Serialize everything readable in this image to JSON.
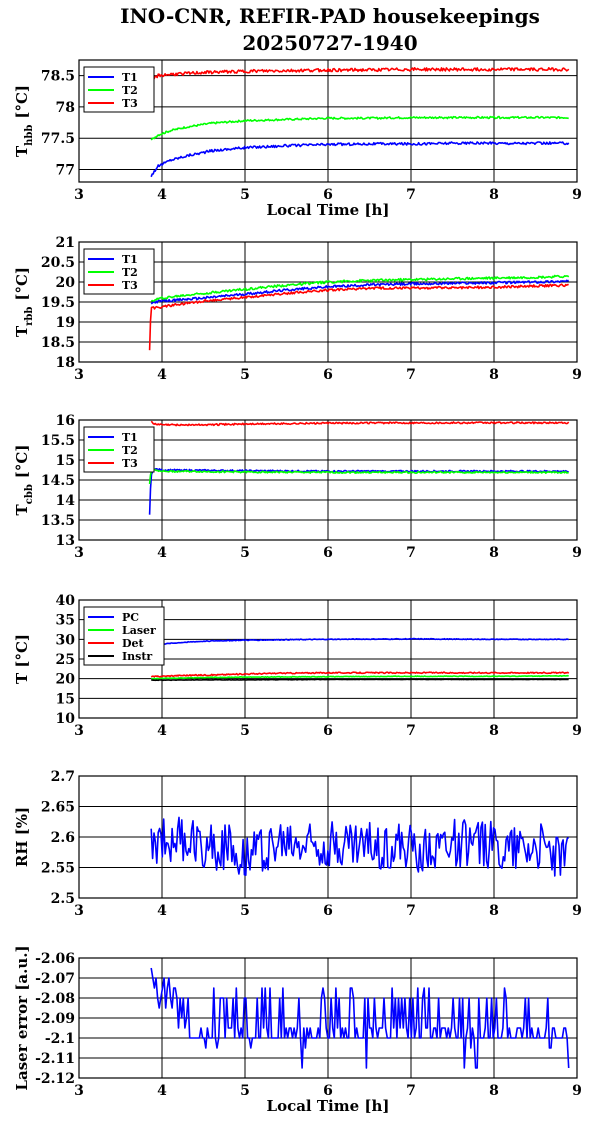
{
  "title_line1": "INO-CNR, REFIR-PAD housekeepings",
  "title_line2": "20250727-1940",
  "colors": {
    "blue": "#0000ff",
    "green": "#00ff00",
    "red": "#ff0000",
    "black": "#000000"
  },
  "chart_data": [
    {
      "type": "line",
      "ylabel": "T",
      "ylabel_sub": "hbb",
      "ylabel_unit": "[°C]",
      "xlabel": "Local Time [h]",
      "xlim": [
        3,
        9
      ],
      "ylim": [
        76.8,
        78.75
      ],
      "xticks": [
        "3",
        "4",
        "5",
        "6",
        "7",
        "8",
        "9"
      ],
      "yticks": [
        {
          "v": 77,
          "t": "77"
        },
        {
          "v": 77.5,
          "t": "77.5"
        },
        {
          "v": 78,
          "t": "78"
        },
        {
          "v": 78.5,
          "t": "78.5"
        }
      ],
      "grid": true,
      "legend": "top-left",
      "series": [
        {
          "name": "T1",
          "color": "#0000ff",
          "x": [
            3.87,
            3.95,
            4.1,
            4.3,
            4.6,
            5.0,
            5.5,
            6.0,
            6.5,
            7.0,
            7.5,
            8.0,
            8.5,
            8.9
          ],
          "values": [
            76.9,
            77.05,
            77.15,
            77.22,
            77.3,
            77.35,
            77.38,
            77.4,
            77.41,
            77.41,
            77.42,
            77.42,
            77.42,
            77.42
          ],
          "noise": 0.02
        },
        {
          "name": "T2",
          "color": "#00ff00",
          "x": [
            3.87,
            3.95,
            4.1,
            4.3,
            4.6,
            5.0,
            5.5,
            6.0,
            6.5,
            7.0,
            7.5,
            8.0,
            8.5,
            8.9
          ],
          "values": [
            77.47,
            77.55,
            77.62,
            77.68,
            77.74,
            77.78,
            77.8,
            77.82,
            77.82,
            77.83,
            77.83,
            77.83,
            77.83,
            77.83
          ],
          "noise": 0.015
        },
        {
          "name": "T3",
          "color": "#ff0000",
          "x": [
            3.87,
            3.9,
            3.95,
            4.1,
            4.5,
            5.0,
            5.5,
            6.0,
            6.5,
            7.0,
            7.5,
            8.0,
            8.5,
            8.9
          ],
          "values": [
            78.3,
            78.45,
            78.5,
            78.52,
            78.55,
            78.57,
            78.58,
            78.59,
            78.59,
            78.6,
            78.6,
            78.6,
            78.6,
            78.6
          ],
          "noise": 0.025
        }
      ]
    },
    {
      "type": "line",
      "ylabel": "T",
      "ylabel_sub": "rbb",
      "ylabel_unit": "[°C]",
      "xlabel": "",
      "xlim": [
        3,
        9
      ],
      "ylim": [
        18,
        21
      ],
      "xticks": [
        "3",
        "4",
        "5",
        "6",
        "7",
        "8",
        "9"
      ],
      "yticks": [
        {
          "v": 18,
          "t": "18"
        },
        {
          "v": 18.5,
          "t": "18.5"
        },
        {
          "v": 19,
          "t": "19"
        },
        {
          "v": 19.5,
          "t": "19.5"
        },
        {
          "v": 20,
          "t": "20"
        },
        {
          "v": 20.5,
          "t": "20.5"
        },
        {
          "v": 21,
          "t": "21"
        }
      ],
      "grid": true,
      "legend": "top-left",
      "series": [
        {
          "name": "T1",
          "color": "#0000ff",
          "x": [
            3.87,
            3.9,
            4.0,
            4.5,
            5.0,
            5.5,
            6.0,
            6.5,
            7.0,
            7.5,
            8.0,
            8.5,
            8.9
          ],
          "values": [
            19.45,
            19.5,
            19.52,
            19.6,
            19.7,
            19.8,
            19.88,
            19.93,
            19.95,
            19.97,
            19.98,
            20.0,
            20.02
          ],
          "noise": 0.03
        },
        {
          "name": "T2",
          "color": "#00ff00",
          "x": [
            3.87,
            3.9,
            4.0,
            4.5,
            5.0,
            5.5,
            6.0,
            6.5,
            7.0,
            7.5,
            8.0,
            8.5,
            8.9
          ],
          "values": [
            19.5,
            19.55,
            19.6,
            19.72,
            19.82,
            19.92,
            20.0,
            20.04,
            20.06,
            20.08,
            20.1,
            20.12,
            20.14
          ],
          "noise": 0.03
        },
        {
          "name": "T3",
          "color": "#ff0000",
          "x": [
            3.85,
            3.86,
            3.87,
            3.9,
            4.0,
            4.5,
            5.0,
            5.5,
            6.0,
            6.5,
            7.0,
            7.5,
            8.0,
            8.5,
            8.9
          ],
          "values": [
            18.3,
            18.9,
            19.4,
            19.35,
            19.38,
            19.52,
            19.62,
            19.72,
            19.8,
            19.84,
            19.85,
            19.86,
            19.87,
            19.9,
            19.92
          ],
          "noise": 0.03
        }
      ]
    },
    {
      "type": "line",
      "ylabel": "T",
      "ylabel_sub": "cbb",
      "ylabel_unit": "[°C]",
      "xlabel": "",
      "xlim": [
        3,
        9
      ],
      "ylim": [
        13,
        16
      ],
      "xticks": [
        "3",
        "4",
        "5",
        "6",
        "7",
        "8",
        "9"
      ],
      "yticks": [
        {
          "v": 13,
          "t": "13"
        },
        {
          "v": 13.5,
          "t": "13.5"
        },
        {
          "v": 14,
          "t": "14"
        },
        {
          "v": 14.5,
          "t": "14.5"
        },
        {
          "v": 15,
          "t": "15"
        },
        {
          "v": 15.5,
          "t": "15.5"
        },
        {
          "v": 16,
          "t": "16"
        }
      ],
      "grid": true,
      "legend": "top-left",
      "series": [
        {
          "name": "T1",
          "color": "#0000ff",
          "x": [
            3.85,
            3.86,
            3.87,
            3.9,
            4.0,
            5.0,
            6.0,
            7.0,
            8.0,
            8.9
          ],
          "values": [
            13.65,
            14.2,
            14.6,
            14.78,
            14.75,
            14.73,
            14.72,
            14.72,
            14.72,
            14.72
          ],
          "noise": 0.02
        },
        {
          "name": "T2",
          "color": "#00ff00",
          "x": [
            3.85,
            3.86,
            3.87,
            3.9,
            4.0,
            5.0,
            6.0,
            7.0,
            8.0,
            8.9
          ],
          "values": [
            14.4,
            14.6,
            14.7,
            14.76,
            14.72,
            14.7,
            14.69,
            14.69,
            14.69,
            14.69
          ],
          "noise": 0.02
        },
        {
          "name": "T3",
          "color": "#ff0000",
          "x": [
            3.87,
            3.9,
            4.0,
            4.5,
            5.0,
            6.0,
            7.0,
            8.0,
            8.9
          ],
          "values": [
            15.95,
            15.9,
            15.88,
            15.88,
            15.9,
            15.92,
            15.93,
            15.93,
            15.93
          ],
          "noise": 0.02
        }
      ]
    },
    {
      "type": "line",
      "ylabel": "T [°C]",
      "ylabel_sub": "",
      "ylabel_unit": "",
      "xlabel": "",
      "xlim": [
        3,
        9
      ],
      "ylim": [
        10,
        40
      ],
      "xticks": [
        "3",
        "4",
        "5",
        "6",
        "7",
        "8",
        "9"
      ],
      "yticks": [
        {
          "v": 10,
          "t": "10"
        },
        {
          "v": 15,
          "t": "15"
        },
        {
          "v": 20,
          "t": "20"
        },
        {
          "v": 25,
          "t": "25"
        },
        {
          "v": 30,
          "t": "30"
        },
        {
          "v": 35,
          "t": "35"
        },
        {
          "v": 40,
          "t": "40"
        }
      ],
      "grid": true,
      "legend": "top-left",
      "series": [
        {
          "name": "PC",
          "color": "#0000ff",
          "x": [
            3.87,
            4.0,
            4.3,
            4.6,
            5.0,
            5.5,
            6.0,
            7.0,
            8.0,
            8.9
          ],
          "values": [
            28.0,
            28.8,
            29.3,
            29.6,
            29.8,
            29.9,
            30.0,
            30.1,
            30.0,
            30.0
          ],
          "noise": 0.1
        },
        {
          "name": "Laser",
          "color": "#00ff00",
          "x": [
            3.87,
            4.5,
            5.0,
            6.0,
            7.0,
            8.0,
            8.9
          ],
          "values": [
            20.0,
            20.3,
            20.4,
            20.5,
            20.6,
            20.6,
            20.7
          ],
          "noise": 0.08
        },
        {
          "name": "Det",
          "color": "#ff0000",
          "x": [
            3.87,
            4.2,
            4.7,
            5.0,
            5.5,
            6.0,
            7.0,
            8.0,
            8.9
          ],
          "values": [
            20.5,
            20.8,
            21.0,
            21.2,
            21.4,
            21.5,
            21.5,
            21.5,
            21.5
          ],
          "noise": 0.15
        },
        {
          "name": "Instr",
          "color": "#000000",
          "x": [
            3.87,
            4.5,
            5.0,
            6.0,
            7.0,
            8.0,
            8.9
          ],
          "values": [
            19.6,
            19.7,
            19.7,
            19.8,
            19.8,
            19.8,
            19.8
          ],
          "noise": 0.05
        }
      ]
    },
    {
      "type": "line",
      "ylabel": "RH [%]",
      "ylabel_sub": "",
      "ylabel_unit": "",
      "xlabel": "",
      "xlim": [
        3,
        9
      ],
      "ylim": [
        2.5,
        2.7
      ],
      "xticks": [
        "3",
        "4",
        "5",
        "6",
        "7",
        "8",
        "9"
      ],
      "yticks": [
        {
          "v": 2.5,
          "t": "2.5"
        },
        {
          "v": 2.55,
          "t": "2.55"
        },
        {
          "v": 2.6,
          "t": "2.6"
        },
        {
          "v": 2.65,
          "t": "2.65"
        },
        {
          "v": 2.7,
          "t": "2.7"
        }
      ],
      "grid": true,
      "legend": "none",
      "series": [
        {
          "name": "",
          "color": "#0000ff",
          "x": [
            3.87,
            4.0,
            4.5,
            5.0,
            5.5,
            6.0,
            6.5,
            7.0,
            7.5,
            8.0,
            8.5,
            8.9
          ],
          "values": [
            2.575,
            2.6,
            2.59,
            2.575,
            2.59,
            2.59,
            2.585,
            2.58,
            2.59,
            2.585,
            2.59,
            2.56
          ],
          "noise": 0.04,
          "jagged": true
        }
      ]
    },
    {
      "type": "line",
      "ylabel": "Laser error [a.u.]",
      "ylabel_sub": "",
      "ylabel_unit": "",
      "xlabel": "Local Time [h]",
      "xlim": [
        3,
        9
      ],
      "ylim": [
        -2.12,
        -2.06
      ],
      "xticks": [
        "3",
        "4",
        "5",
        "6",
        "7",
        "8",
        "9"
      ],
      "yticks": [
        {
          "v": -2.12,
          "t": "-2.12"
        },
        {
          "v": -2.11,
          "t": "-2.11"
        },
        {
          "v": -2.1,
          "t": "-2.1"
        },
        {
          "v": -2.09,
          "t": "-2.09"
        },
        {
          "v": -2.08,
          "t": "-2.08"
        },
        {
          "v": -2.07,
          "t": "-2.07"
        },
        {
          "v": -2.06,
          "t": "-2.06"
        }
      ],
      "grid": true,
      "legend": "none",
      "series": [
        {
          "name": "",
          "color": "#0000ff",
          "x": [
            3.87,
            3.95,
            4.05,
            4.2,
            4.5,
            5.0,
            5.5,
            6.0,
            6.5,
            7.0,
            7.5,
            8.0,
            8.5,
            8.9
          ],
          "values": [
            -2.062,
            -2.075,
            -2.078,
            -2.085,
            -2.095,
            -2.095,
            -2.09,
            -2.095,
            -2.095,
            -2.095,
            -2.095,
            -2.095,
            -2.095,
            -2.1
          ],
          "noise": 0.0,
          "quantized": true
        }
      ]
    }
  ]
}
